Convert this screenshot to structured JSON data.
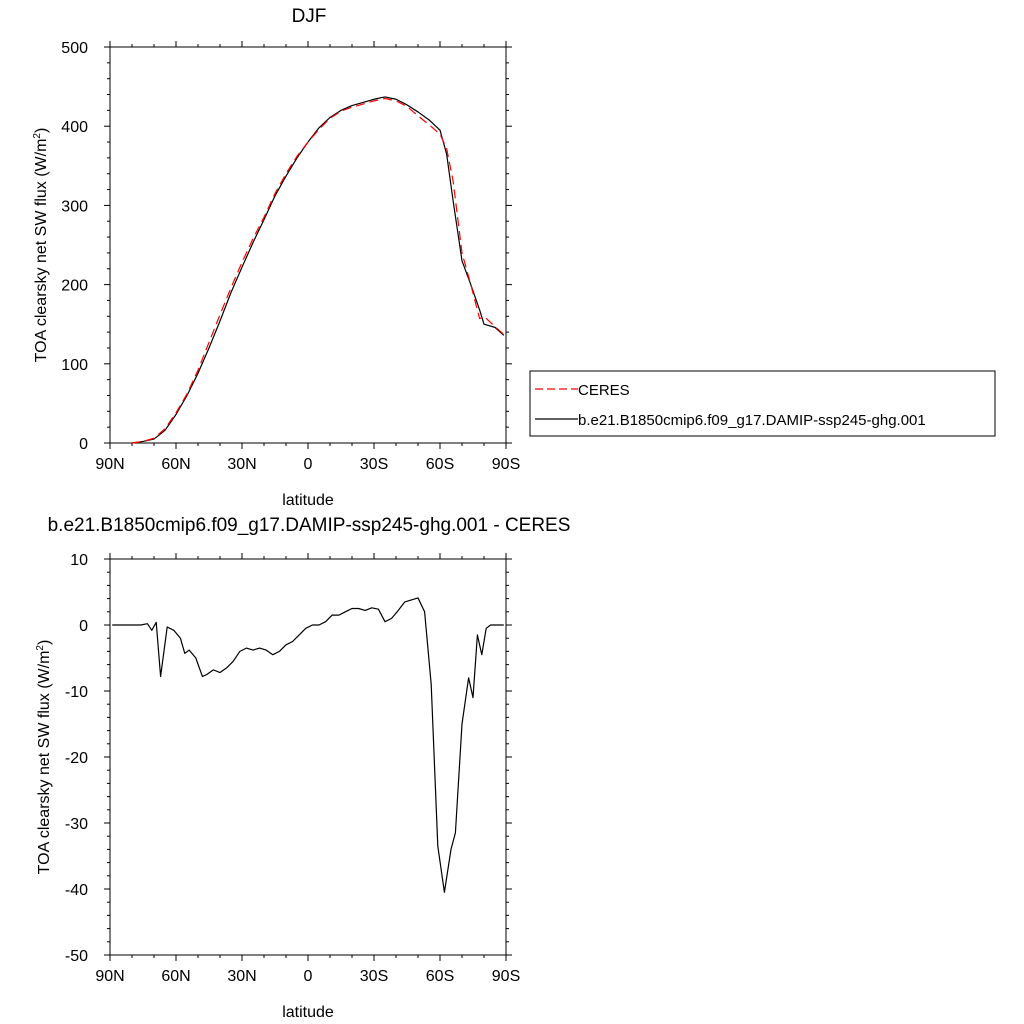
{
  "chart_data": [
    {
      "type": "line",
      "title": "DJF",
      "xlabel": "latitude",
      "ylabel": "TOA clearsky net SW flux (W/m",
      "ylabel_sup": "2",
      "ylabel_end": ")",
      "xlim": [
        -90,
        90
      ],
      "ylim": [
        0,
        500
      ],
      "x_ticks": [
        -90,
        -60,
        -30,
        0,
        30,
        60,
        90
      ],
      "x_tick_labels": [
        "90N",
        "60N",
        "30N",
        "0",
        "30S",
        "60S",
        "90S"
      ],
      "y_ticks": [
        0,
        100,
        200,
        300,
        400,
        500
      ],
      "y_tick_labels": [
        "0",
        "100",
        "200",
        "300",
        "400",
        "500"
      ],
      "legend_position": "right",
      "series": [
        {
          "name": "CERES",
          "color": "#ff0000",
          "dashed": true,
          "x": [
            -80,
            -75,
            -70,
            -65,
            -60,
            -55,
            -50,
            -45,
            -40,
            -35,
            -30,
            -25,
            -20,
            -15,
            -10,
            -5,
            0,
            5,
            10,
            15,
            20,
            25,
            30,
            35,
            40,
            45,
            50,
            55,
            60,
            63,
            66,
            70,
            74,
            78,
            80,
            85,
            89
          ],
          "values": [
            0,
            2,
            6,
            18,
            38,
            62,
            92,
            127,
            162,
            196,
            228,
            258,
            285,
            315,
            340,
            362,
            380,
            396,
            410,
            419,
            424,
            428,
            432,
            435,
            432,
            425,
            413,
            402,
            390,
            372,
            330,
            240,
            200,
            157,
            160,
            147,
            137
          ]
        },
        {
          "name": "b.e21.B1850cmip6.f09_g17.DAMIP-ssp245-ghg.001",
          "color": "#000000",
          "dashed": false,
          "x": [
            -80,
            -75,
            -70,
            -65,
            -60,
            -55,
            -50,
            -45,
            -40,
            -35,
            -30,
            -25,
            -20,
            -15,
            -10,
            -5,
            0,
            5,
            10,
            15,
            20,
            25,
            30,
            35,
            40,
            45,
            50,
            55,
            60,
            63,
            66,
            70,
            74,
            78,
            80,
            85,
            89
          ],
          "values": [
            0,
            2,
            5,
            16,
            36,
            60,
            88,
            120,
            154,
            190,
            222,
            253,
            282,
            312,
            337,
            360,
            380,
            398,
            411,
            420,
            426,
            430,
            434,
            437,
            434,
            427,
            418,
            408,
            395,
            365,
            305,
            230,
            200,
            168,
            150,
            146,
            136
          ]
        }
      ]
    },
    {
      "type": "line",
      "title": "b.e21.B1850cmip6.f09_g17.DAMIP-ssp245-ghg.001 - CERES",
      "xlabel": "latitude",
      "ylabel": "TOA clearsky net SW flux (W/m",
      "ylabel_sup": "2",
      "ylabel_end": ")",
      "xlim": [
        -90,
        90
      ],
      "ylim": [
        -50,
        10
      ],
      "x_ticks": [
        -90,
        -60,
        -30,
        0,
        30,
        60,
        90
      ],
      "x_tick_labels": [
        "90N",
        "60N",
        "30N",
        "0",
        "30S",
        "60S",
        "90S"
      ],
      "y_ticks": [
        -50,
        -40,
        -30,
        -20,
        -10,
        0,
        10
      ],
      "y_tick_labels": [
        "-50",
        "-40",
        "-30",
        "-20",
        "-10",
        "0",
        "10"
      ],
      "series": [
        {
          "name": "",
          "color": "#000000",
          "dashed": false,
          "x": [
            -89,
            -85,
            -80,
            -76,
            -73,
            -71,
            -69,
            -67,
            -64,
            -61,
            -58,
            -56,
            -54,
            -51,
            -48,
            -46,
            -43,
            -40,
            -37,
            -34,
            -31,
            -28,
            -25,
            -22,
            -19,
            -16,
            -13,
            -10,
            -7,
            -4,
            -1,
            2,
            5,
            8,
            11,
            14,
            17,
            20,
            23,
            26,
            29,
            32,
            35,
            38,
            41,
            44,
            47,
            50,
            53,
            56,
            59,
            62,
            65,
            67,
            70,
            73,
            75,
            77,
            79,
            81,
            83,
            85,
            87,
            89
          ],
          "values": [
            0,
            0,
            0,
            0,
            0.2,
            -0.8,
            0.4,
            -7.8,
            -0.3,
            -0.8,
            -2,
            -4.3,
            -3.8,
            -5,
            -7.8,
            -7.5,
            -6.8,
            -7.2,
            -6.5,
            -5.5,
            -4,
            -3.5,
            -3.8,
            -3.5,
            -3.8,
            -4.5,
            -4,
            -3,
            -2.5,
            -1.5,
            -0.5,
            0,
            0,
            0.5,
            1.5,
            1.5,
            2,
            2.5,
            2.5,
            2.2,
            2.6,
            2.4,
            0.5,
            1,
            2.2,
            3.5,
            3.8,
            4.1,
            2,
            -9,
            -33.5,
            -40.5,
            -34,
            -31.5,
            -15,
            -8,
            -11,
            -1.5,
            -4.5,
            -0.5,
            0,
            0,
            0,
            0
          ]
        }
      ]
    }
  ]
}
